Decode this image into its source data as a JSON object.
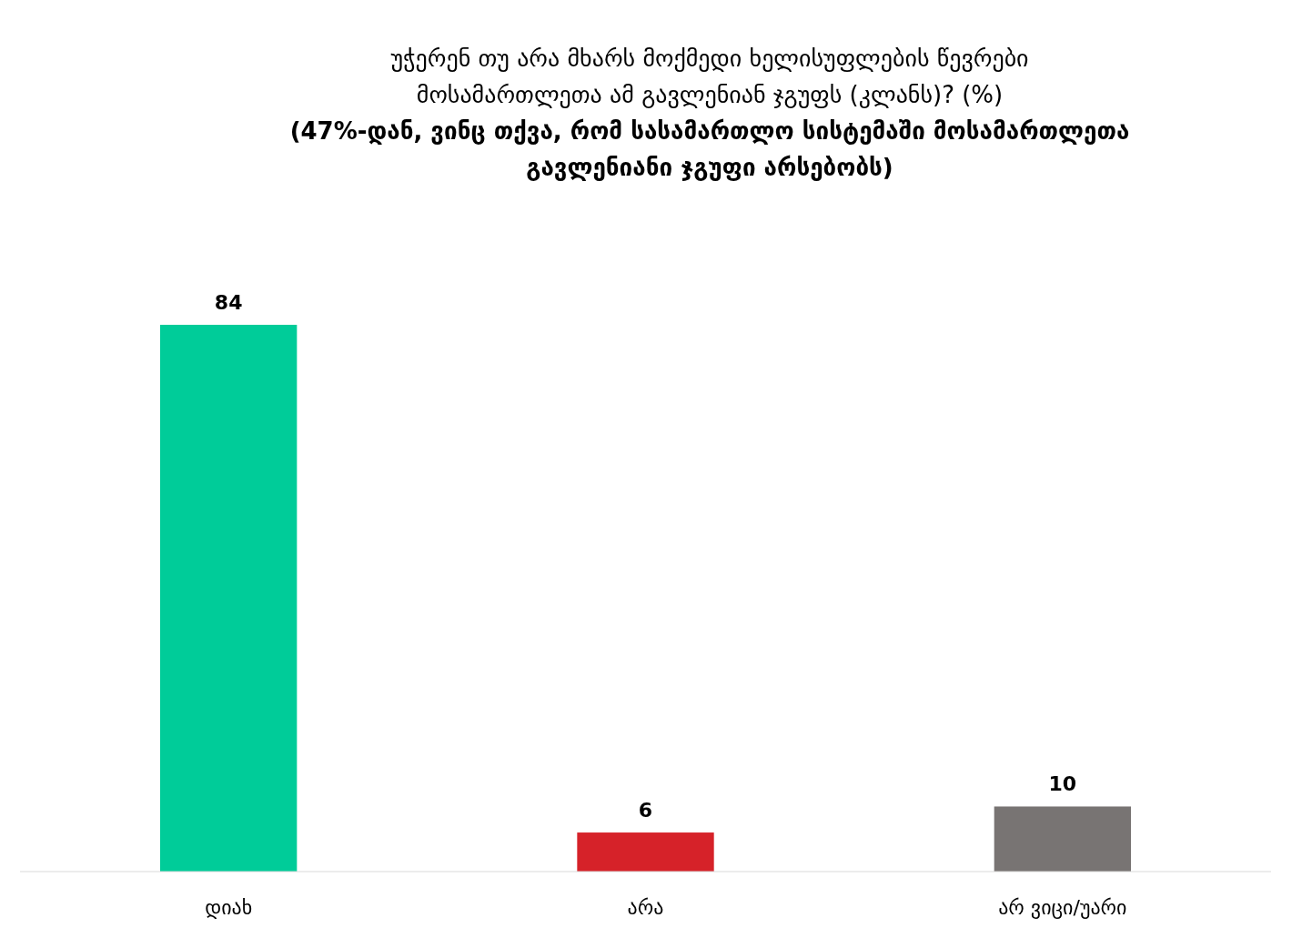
{
  "chart_data": {
    "type": "bar",
    "title": "უჭერენ თუ არა მხარს მოქმედი ხელისუფლების წევრები\nმოსამართლეთა ამ გავლენიან ჯგუფს (კლანს)? (%)",
    "subtitle": "(47%-დან, ვინც თქვა, რომ სასამართლო სისტემაში მოსამართლეთა\nგავლენიანი ჯგუფი არსებობს)",
    "categories": [
      "დიახ",
      "არა",
      "არ ვიცი/უარი"
    ],
    "values": [
      84,
      6,
      10
    ],
    "colors": [
      "#00cc99",
      "#d62229",
      "#787473"
    ],
    "data_labels": true
  }
}
